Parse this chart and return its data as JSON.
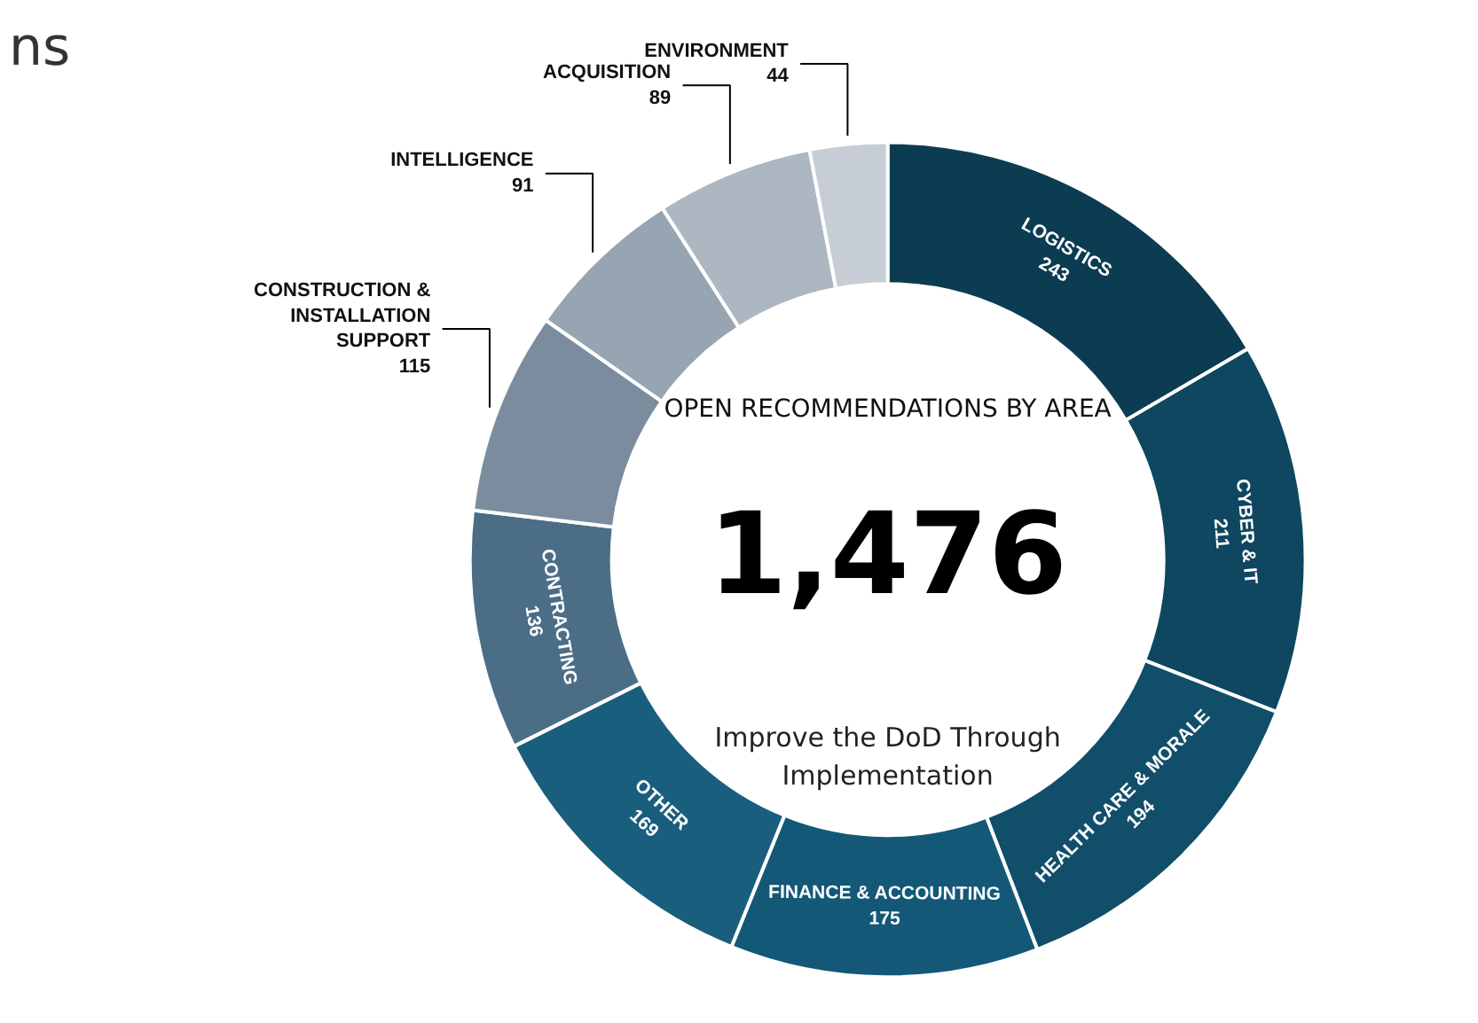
{
  "chart_data": {
    "type": "donut",
    "title": "OPEN RECOMMENDATIONS BY AREA",
    "categories": [
      "LOGISTICS",
      "CYBER & IT",
      "HEALTH CARE & MORALE",
      "FINANCE & ACCOUNTING",
      "OTHER",
      "CONTRACTING",
      "CONSTRUCTION & INSTALLATION SUPPORT",
      "INTELLIGENCE",
      "ACQUISITION",
      "ENVIRONMENT"
    ],
    "values": [
      243,
      211,
      194,
      175,
      169,
      136,
      115,
      91,
      89,
      44
    ],
    "colors": [
      "#0c3c51",
      "#0f4660",
      "#114e6a",
      "#145877",
      "#1a5e7d",
      "#4b6e86",
      "#7a8c9d",
      "#97a4b1",
      "#adb7c2",
      "#c6cdd4"
    ],
    "data_labels": true,
    "annotations": [
      "1,476",
      "Improve the DoD Through Implementation",
      "ns"
    ]
  }
}
